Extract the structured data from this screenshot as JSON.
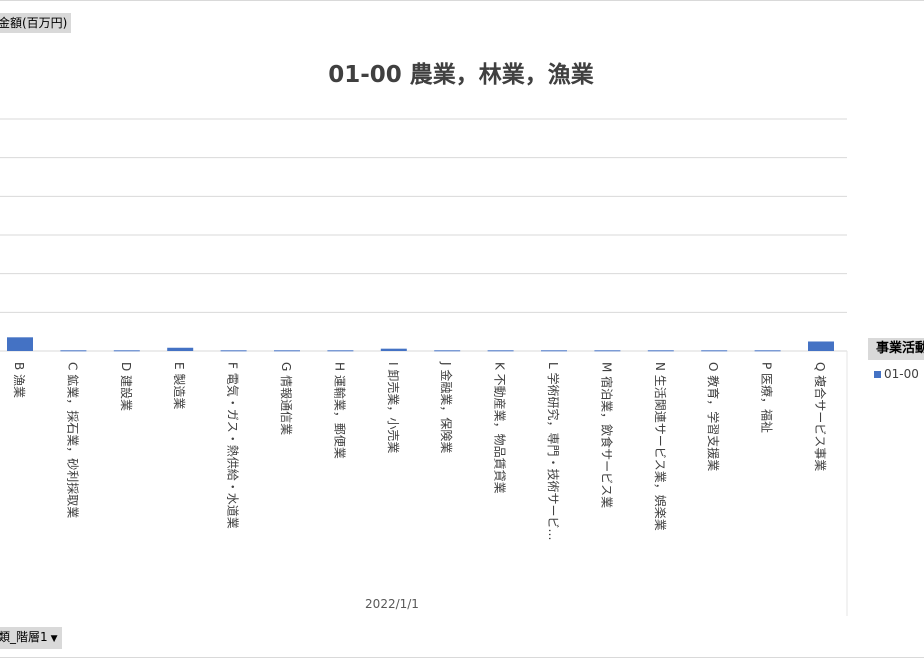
{
  "field_buttons": {
    "value": "金額(百万円)",
    "axis": "類_階層1",
    "legend": "事業活動"
  },
  "chart_data": {
    "type": "bar",
    "title": "01-00 農業，林業，漁業",
    "xlabel": "2022/1/1",
    "ylabel": "",
    "ylim": [
      0,
      100
    ],
    "grid": true,
    "legend_position": "right",
    "categories": [
      "B 漁業",
      "C 鉱業，採石業，砂利採取業",
      "D 建設業",
      "E 製造業",
      "F 電気・ガス・熱供給・水道業",
      "G 情報通信業",
      "H 運輸業，郵便業",
      "I 卸売業，小売業",
      "J 金融業，保険業",
      "K 不動産業，物品賃貸業",
      "L 学術研究，専門・技術サービ…",
      "M 宿泊業，飲食サービス業",
      "N 生活関連サービス業，娯楽業",
      "O 教育，学習支援業",
      "P 医療，福祉",
      "Q 複合サービス事業"
    ],
    "series": [
      {
        "name": "01-00",
        "color": "#4472c4",
        "values": [
          5.9,
          0.3,
          0.3,
          1.4,
          0.3,
          0.3,
          0.3,
          1.0,
          0.3,
          0.3,
          0.3,
          0.3,
          0.3,
          0.3,
          0.3,
          4.1
        ]
      }
    ]
  }
}
